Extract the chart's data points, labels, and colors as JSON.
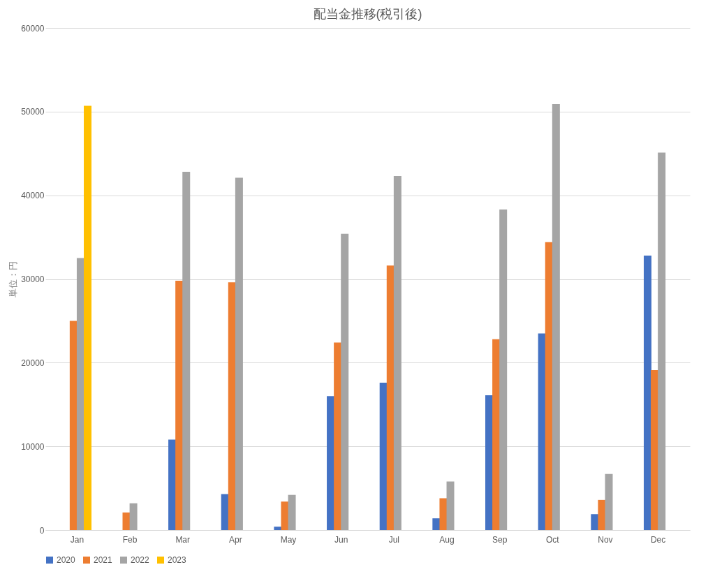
{
  "chart_data": {
    "type": "bar",
    "title": "配当金推移(税引後)",
    "ylabel": "単位：円",
    "categories": [
      "Jan",
      "Feb",
      "Mar",
      "Apr",
      "May",
      "Jun",
      "Jul",
      "Aug",
      "Sep",
      "Oct",
      "Nov",
      "Dec"
    ],
    "series": [
      {
        "name": "2020",
        "color": "#4472c4",
        "values": [
          null,
          null,
          10800,
          4300,
          400,
          16000,
          17600,
          1400,
          16100,
          23500,
          1900,
          32800
        ]
      },
      {
        "name": "2021",
        "color": "#ed7d31",
        "values": [
          25000,
          2100,
          29800,
          29600,
          3400,
          22400,
          31600,
          3800,
          22800,
          34400,
          3600,
          19100
        ]
      },
      {
        "name": "2022",
        "color": "#a5a5a5",
        "values": [
          32500,
          3200,
          42800,
          42100,
          4200,
          35400,
          42300,
          5800,
          38300,
          50900,
          6700,
          45100
        ]
      },
      {
        "name": "2023",
        "color": "#ffc000",
        "values": [
          50700,
          null,
          null,
          null,
          null,
          null,
          null,
          null,
          null,
          null,
          null,
          null
        ]
      }
    ],
    "ylim": [
      0,
      60000
    ],
    "yticks": [
      0,
      10000,
      20000,
      30000,
      40000,
      50000,
      60000
    ],
    "grid": "y",
    "legend": "bottom"
  }
}
